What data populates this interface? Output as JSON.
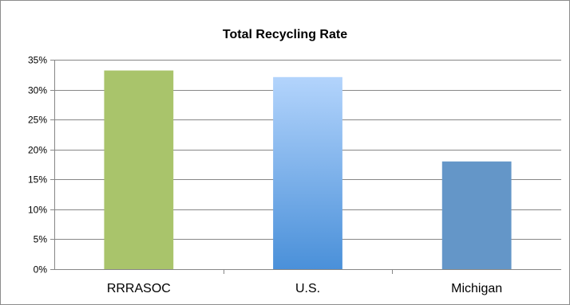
{
  "chart_data": {
    "type": "bar",
    "title": "Total Recycling Rate",
    "xlabel": "",
    "ylabel": "",
    "categories": [
      "RRRASOC",
      "U.S.",
      "Michigan"
    ],
    "values": [
      33.2,
      32.1,
      18.0
    ],
    "ylim": [
      0,
      35
    ],
    "yticks": [
      0,
      5,
      10,
      15,
      20,
      25,
      30,
      35
    ],
    "ytick_labels": [
      "0%",
      "5%",
      "10%",
      "15%",
      "20%",
      "25%",
      "30%",
      "35%"
    ],
    "grid": true,
    "legend": "none",
    "bar_colors": [
      "#a9c46b",
      "#8fb8e8",
      "#6496c8"
    ]
  }
}
